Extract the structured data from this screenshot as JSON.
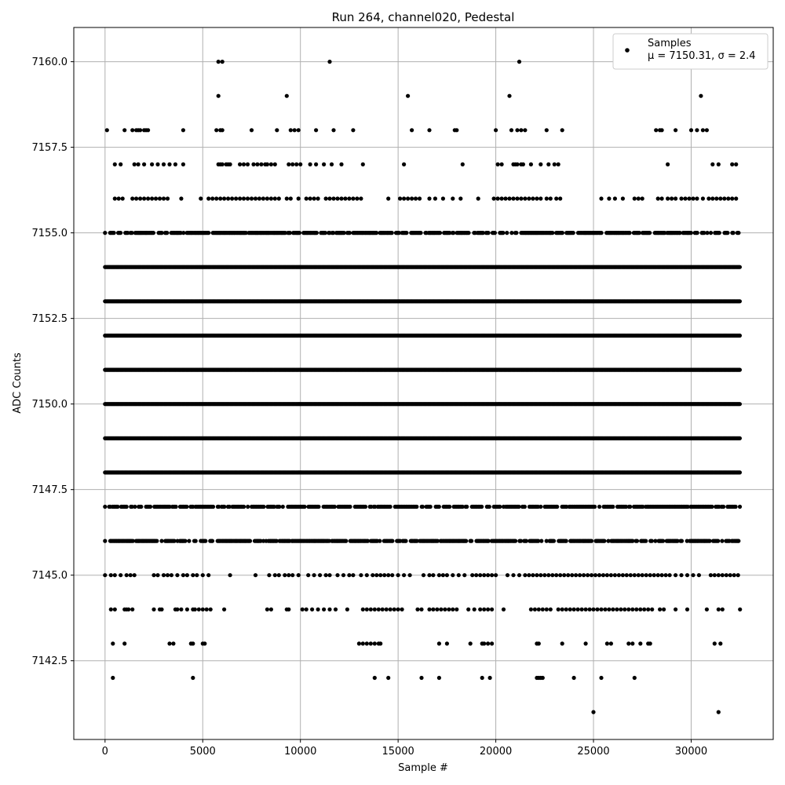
{
  "chart_data": {
    "type": "scatter",
    "title": "Run 264, channel020, Pedestal",
    "xlabel": "Sample #",
    "ylabel": "ADC Counts",
    "xlim": [
      -1600,
      34200
    ],
    "ylim": [
      7140.2,
      7161.0
    ],
    "xticks": [
      0,
      5000,
      10000,
      15000,
      20000,
      25000,
      30000
    ],
    "xtick_labels": [
      "0",
      "5000",
      "10000",
      "15000",
      "20000",
      "25000",
      "30000"
    ],
    "yticks": [
      7142.5,
      7145.0,
      7147.5,
      7150.0,
      7152.5,
      7155.0,
      7157.5,
      7160.0
    ],
    "ytick_labels": [
      "7142.5",
      "7145.0",
      "7147.5",
      "7150.0",
      "7152.5",
      "7155.0",
      "7157.5",
      "7160.0"
    ],
    "grid": true,
    "legend": {
      "position": "top-right",
      "entries": [
        {
          "label": "Samples",
          "label2": "μ = 7150.31, σ = 2.4"
        }
      ]
    },
    "series": [
      {
        "name": "Samples",
        "color": "#000000",
        "levels": [
          {
            "y": 7141,
            "x": [
              25000,
              31400
            ]
          },
          {
            "y": 7142,
            "x": [
              400,
              4500,
              13800,
              14500,
              16200,
              17100,
              19300,
              19700,
              22100,
              22200,
              22300,
              22400,
              24000,
              25400,
              27100
            ]
          },
          {
            "y": 7143,
            "x": [
              400,
              1000,
              3300,
              3500,
              4400,
              4500,
              5000,
              5100,
              13000,
              13200,
              13400,
              13600,
              13800,
              14000,
              14100,
              17100,
              17500,
              18700,
              19300,
              19400,
              19600,
              19800,
              22100,
              22200,
              23400,
              24600,
              25700,
              25900,
              26800,
              27000,
              27400,
              27800,
              27900,
              31200,
              31500
            ]
          },
          {
            "y": 7144,
            "x": [
              300,
              500,
              1000,
              1100,
              1200,
              1400,
              2500,
              2800,
              2900,
              3600,
              3700,
              3900,
              4200,
              4500,
              4600,
              4800,
              5000,
              5200,
              5400,
              6100,
              8300,
              8500,
              9300,
              9400,
              10100,
              10300,
              10600,
              10900,
              11200,
              11500,
              11800,
              12400,
              13200,
              13400,
              13600,
              13800,
              14000,
              14200,
              14400,
              14600,
              14800,
              15000,
              15200,
              16000,
              16200,
              16600,
              16800,
              17000,
              17200,
              17400,
              17600,
              17800,
              18000,
              18600,
              18900,
              19200,
              19400,
              19600,
              19800,
              20400,
              21800,
              22000,
              22200,
              22400,
              22600,
              22800,
              23200,
              23400,
              23600,
              23800,
              24000,
              24200,
              24400,
              24600,
              24800,
              25000,
              25200,
              25400,
              25600,
              25800,
              26000,
              26200,
              26400,
              26600,
              26800,
              27000,
              27200,
              27400,
              27600,
              27800,
              28000,
              28400,
              28600,
              29200,
              29800,
              30800,
              31400,
              31600,
              32500
            ]
          },
          {
            "y": 7145,
            "x": [
              0,
              300,
              500,
              800,
              1100,
              1300,
              1500,
              2500,
              2700,
              3000,
              3200,
              3400,
              3700,
              4000,
              4200,
              4500,
              4700,
              5000,
              5300,
              6400,
              7700,
              8400,
              8700,
              8900,
              9200,
              9400,
              9600,
              9900,
              10400,
              10700,
              11000,
              11300,
              11500,
              11900,
              12200,
              12500,
              12700,
              13100,
              13400,
              13700,
              13900,
              14100,
              14300,
              14500,
              14700,
              15000,
              15300,
              15600,
              16300,
              16600,
              16800,
              17100,
              17300,
              17500,
              17800,
              18100,
              18400,
              18800,
              19000,
              19200,
              19400,
              19600,
              19800,
              20000,
              20600,
              20900,
              21200,
              21500,
              21700,
              21900,
              22100,
              22300,
              22500,
              22700,
              22900,
              23100,
              23300,
              23500,
              23700,
              23900,
              24100,
              24300,
              24500,
              24700,
              24900,
              25100,
              25300,
              25500,
              25700,
              25900,
              26100,
              26300,
              26500,
              26700,
              26900,
              27100,
              27300,
              27500,
              27700,
              27900,
              28100,
              28300,
              28500,
              28700,
              28900,
              29200,
              29500,
              29800,
              30100,
              30400,
              31000,
              31200,
              31400,
              31600,
              31800,
              32000,
              32200,
              32400
            ]
          },
          {
            "y": 7146,
            "x": "dense-with-gaps"
          },
          {
            "y": 7147,
            "x": "dense-with-gaps"
          },
          {
            "y": 7148,
            "x": "dense"
          },
          {
            "y": 7149,
            "x": "dense"
          },
          {
            "y": 7150,
            "x": "dense"
          },
          {
            "y": 7151,
            "x": "dense"
          },
          {
            "y": 7152,
            "x": "dense"
          },
          {
            "y": 7153,
            "x": "dense"
          },
          {
            "y": 7154,
            "x": "dense"
          },
          {
            "y": 7155,
            "x": "dense-with-gaps"
          },
          {
            "y": 7156,
            "x": [
              500,
              700,
              900,
              1400,
              1600,
              1800,
              2000,
              2200,
              2400,
              2600,
              2800,
              3000,
              3200,
              3900,
              4900,
              5300,
              5500,
              5700,
              5900,
              6100,
              6300,
              6500,
              6700,
              6900,
              7100,
              7300,
              7500,
              7700,
              7900,
              8100,
              8300,
              8500,
              8700,
              8900,
              9300,
              9500,
              9900,
              10300,
              10500,
              10700,
              10900,
              11300,
              11500,
              11700,
              11900,
              12100,
              12300,
              12500,
              12700,
              12900,
              13100,
              14500,
              15100,
              15300,
              15500,
              15700,
              15900,
              16100,
              16600,
              16900,
              17300,
              17800,
              18200,
              19100,
              19900,
              20100,
              20300,
              20500,
              20700,
              20900,
              21100,
              21300,
              21500,
              21700,
              21900,
              22100,
              22300,
              22600,
              22800,
              23100,
              23300,
              25400,
              25800,
              26100,
              26500,
              27100,
              27300,
              27500,
              28300,
              28500,
              28800,
              29000,
              29200,
              29500,
              29700,
              29900,
              30100,
              30300,
              30600,
              30900,
              31100,
              31300,
              31500,
              31700,
              31900,
              32100,
              32300
            ]
          },
          {
            "y": 7157,
            "x": [
              500,
              800,
              1500,
              1700,
              2000,
              2400,
              2700,
              3000,
              3300,
              3600,
              4000,
              5800,
              5900,
              6000,
              6200,
              6300,
              6400,
              6900,
              7100,
              7300,
              7600,
              7800,
              8000,
              8200,
              8300,
              8500,
              8700,
              9400,
              9600,
              9800,
              10000,
              10500,
              10800,
              11200,
              11600,
              12100,
              13200,
              15300,
              18300,
              20100,
              20300,
              20900,
              21000,
              21100,
              21300,
              21400,
              21800,
              22300,
              22700,
              23000,
              23200,
              28800,
              31100,
              31400,
              32100,
              32300
            ]
          },
          {
            "y": 7158,
            "x": [
              100,
              1000,
              1400,
              1600,
              1700,
              1800,
              2000,
              2100,
              2200,
              4000,
              5700,
              5900,
              6000,
              7500,
              8800,
              9500,
              9700,
              9900,
              10800,
              11700,
              12700,
              15700,
              16600,
              17900,
              18000,
              20000,
              20800,
              21100,
              21300,
              21500,
              22600,
              23400,
              28200,
              28400,
              28500,
              29200,
              30000,
              30300,
              30600,
              30800
            ]
          },
          {
            "y": 7159,
            "x": [
              5800,
              9300,
              15500,
              20700,
              30500
            ]
          },
          {
            "y": 7160,
            "x": [
              5800,
              6000,
              11500,
              21200
            ]
          }
        ],
        "dense_x_range": [
          0,
          32500
        ]
      }
    ]
  }
}
